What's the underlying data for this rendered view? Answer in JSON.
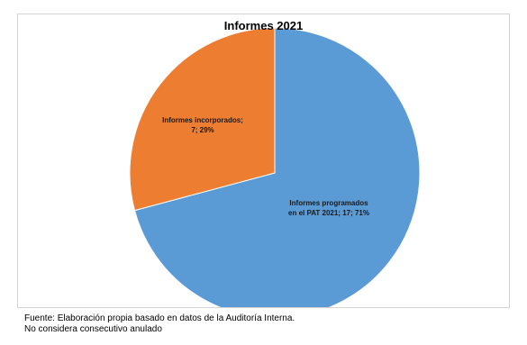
{
  "chart_data": {
    "type": "pie",
    "title": "Informes 2021",
    "slices": [
      {
        "name": "Informes programados en el PAT 2021",
        "value": 17,
        "percent": 71,
        "label_lines": [
          "Informes programados",
          "en el  PAT 2021; 17; 71%"
        ],
        "color": "#5B9BD5"
      },
      {
        "name": "Informes incorporados",
        "value": 7,
        "percent": 29,
        "label_lines": [
          "Informes incorporados;",
          "7; 29%"
        ],
        "color": "#ED7D31"
      }
    ],
    "legend": "none"
  },
  "footnotes": {
    "source": "Fuente: Elaboración propia basado en datos de la Auditoría Interna.",
    "note": "No considera consecutivo anulado"
  }
}
